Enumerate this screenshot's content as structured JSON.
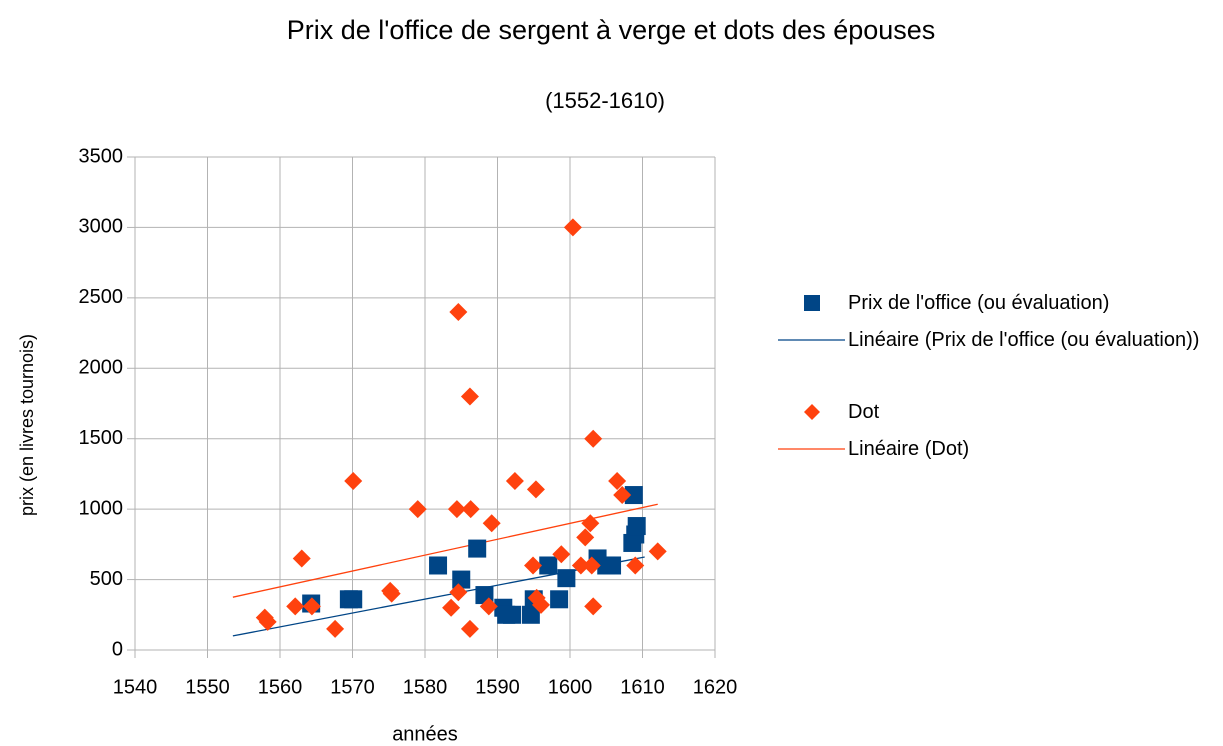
{
  "chart_data": {
    "type": "scatter",
    "title": "Prix de l'office de sergent à verge et dots des épouses",
    "subtitle": "(1552-1610)",
    "xlabel": "années",
    "ylabel": "prix (en livres tournois)",
    "xlim": [
      1540,
      1620
    ],
    "xticks": [
      1540,
      1550,
      1560,
      1570,
      1580,
      1590,
      1600,
      1610,
      1620
    ],
    "ylim": [
      0,
      3500
    ],
    "yticks": [
      0,
      500,
      1000,
      1500,
      2000,
      2500,
      3000,
      3500
    ],
    "grid": true,
    "legend": "right",
    "series": [
      {
        "name": "Prix de l'office (ou évaluation)",
        "color": "#004586",
        "marker": "square",
        "x": [
          1564.3,
          1569.5,
          1570.1,
          1581.8,
          1585,
          1587.2,
          1588.2,
          1590.8,
          1591.2,
          1592,
          1594.6,
          1595,
          1597,
          1598.5,
          1599.5,
          1603.8,
          1605,
          1605.8,
          1608.6,
          1609,
          1609.2,
          1608.8
        ],
        "values": [
          330,
          360,
          360,
          600,
          500,
          720,
          390,
          300,
          250,
          250,
          250,
          360,
          600,
          360,
          510,
          650,
          600,
          600,
          760,
          820,
          880,
          1100
        ]
      },
      {
        "name": "Linéaire (Prix de l'office (ou évaluation))",
        "color": "#004586",
        "marker": "line",
        "x": [
          1553.5,
          1610.3
        ],
        "values": [
          100,
          660
        ]
      },
      {
        "name": "Dot",
        "color": "#ff420e",
        "marker": "diamond",
        "x": [
          1557.9,
          1558.3,
          1562.1,
          1563,
          1564.4,
          1567.6,
          1570.1,
          1575.2,
          1575.4,
          1579,
          1583.6,
          1584.6,
          1584.4,
          1584.6,
          1586.2,
          1586.3,
          1586.2,
          1588.8,
          1589.2,
          1592.4,
          1594.9,
          1595.3,
          1595.4,
          1596,
          1598.8,
          1600.4,
          1601.5,
          1602.1,
          1602.8,
          1603.2,
          1603.2,
          1603,
          1606.5,
          1607.2,
          1609,
          1612.1
        ],
        "values": [
          230,
          200,
          310,
          650,
          310,
          150,
          1200,
          420,
          400,
          1000,
          300,
          2400,
          1000,
          410,
          1800,
          1000,
          150,
          310,
          900,
          1200,
          600,
          1140,
          370,
          320,
          680,
          3000,
          600,
          800,
          900,
          1500,
          310,
          600,
          1200,
          1100,
          600,
          700
        ]
      },
      {
        "name": "Linéaire (Dot)",
        "color": "#ff420e",
        "marker": "line",
        "x": [
          1553.5,
          1612.1
        ],
        "values": [
          375,
          1035
        ]
      }
    ]
  }
}
